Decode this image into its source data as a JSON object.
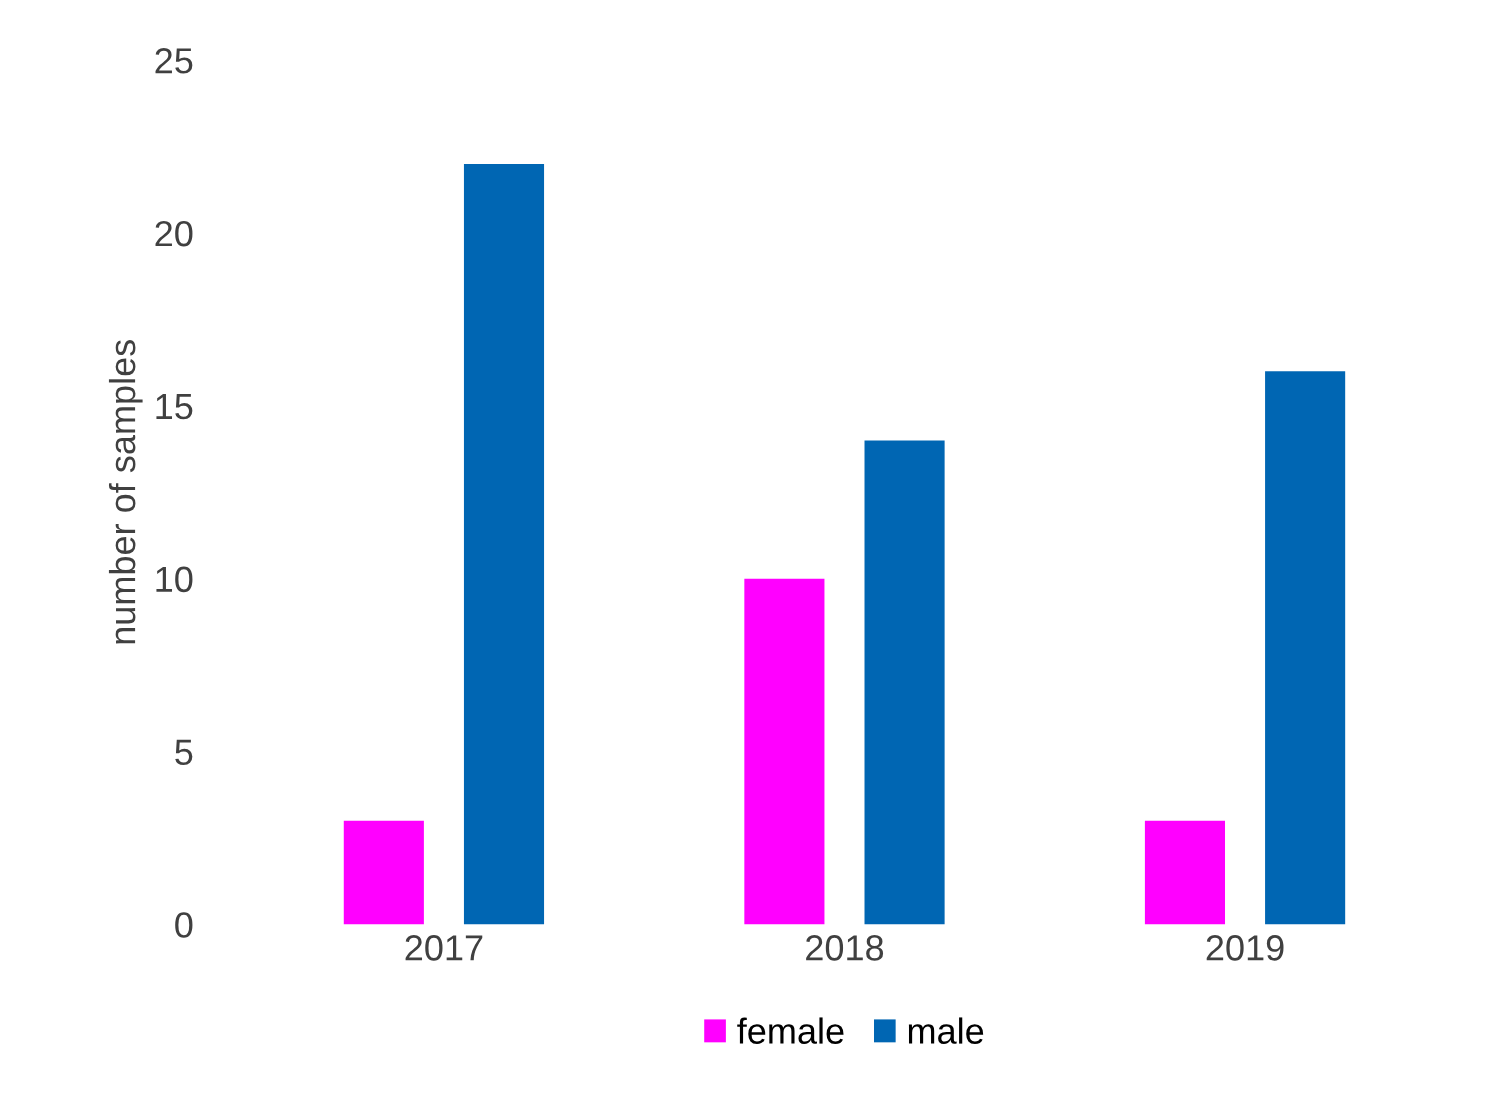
{
  "chart_data": {
    "type": "bar",
    "ylabel": "number of samples",
    "categories": [
      "2017",
      "2018",
      "2019"
    ],
    "series": [
      {
        "name": "female",
        "color": "#ff00ff",
        "values": [
          3,
          10,
          3
        ]
      },
      {
        "name": "male",
        "color": "#0066b3",
        "values": [
          22,
          14,
          16
        ]
      }
    ],
    "ylim": [
      0,
      25
    ],
    "yticks": [
      0,
      5,
      10,
      15,
      20,
      25
    ],
    "grid": false,
    "legend": "bottom"
  }
}
